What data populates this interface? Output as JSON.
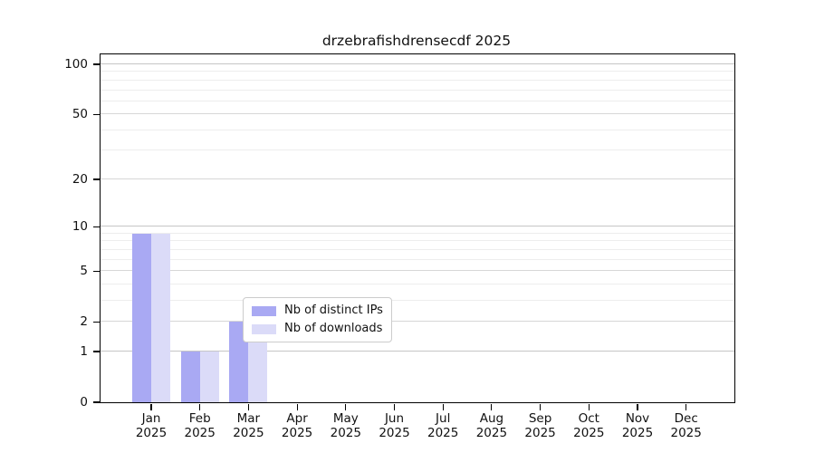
{
  "figure": {
    "title": "drzebrafishdrensecdf 2025"
  },
  "colors": {
    "distinct_ips_bar": "#a9a9f3",
    "downloads_bar": "#dbdbf8",
    "grid_minor": "#ededed",
    "grid_major": "#d7d7d7",
    "grid_decade": "#c6c6c6",
    "axis": "#000000",
    "background": "#ffffff",
    "legend_border": "#cccccc"
  },
  "legend": {
    "items": [
      {
        "label": "Nb of distinct IPs",
        "color": "#a9a9f3"
      },
      {
        "label": "Nb of downloads",
        "color": "#dbdbf8"
      }
    ]
  },
  "chart_data": {
    "type": "bar",
    "title": "drzebrafishdrensecdf 2025",
    "categories": [
      "Jan 2025",
      "Feb 2025",
      "Mar 2025",
      "Apr 2025",
      "May 2025",
      "Jun 2025",
      "Jul 2025",
      "Aug 2025",
      "Sep 2025",
      "Oct 2025",
      "Nov 2025",
      "Dec 2025"
    ],
    "series": [
      {
        "name": "Nb of distinct IPs",
        "color": "#a9a9f3",
        "values": [
          9,
          1,
          2,
          0,
          0,
          0,
          0,
          0,
          0,
          0,
          0,
          0
        ]
      },
      {
        "name": "Nb of downloads",
        "color": "#dbdbf8",
        "values": [
          9,
          1,
          2,
          0,
          0,
          0,
          0,
          0,
          0,
          0,
          0,
          0
        ]
      }
    ],
    "xlabel": "",
    "ylabel": "",
    "yscale": "log(1+x)",
    "ylim": [
      0,
      115
    ],
    "yticks": [
      0,
      1,
      2,
      5,
      10,
      20,
      50,
      100
    ],
    "decade_gridlines": [
      1,
      10,
      100
    ],
    "major_gridlines": [
      2,
      5,
      20,
      50
    ],
    "minor_gridlines": [
      3,
      4,
      6,
      7,
      8,
      9,
      30,
      40,
      60,
      70,
      80,
      90
    ],
    "grid": "on",
    "legend_position": "inside lower center"
  }
}
